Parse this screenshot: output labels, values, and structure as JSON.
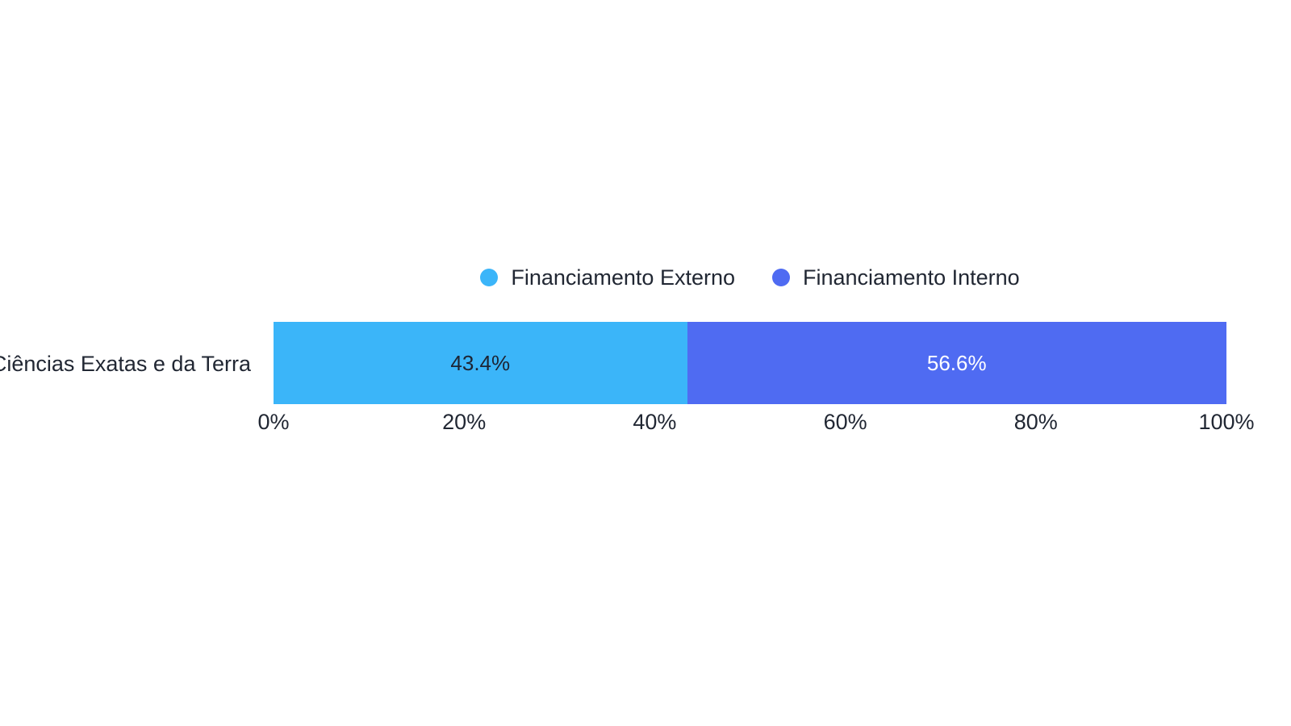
{
  "page": {
    "background": "#ffffff",
    "text_color": "#212733"
  },
  "chart_data": {
    "type": "bar",
    "orientation": "horizontal",
    "stacked": true,
    "title": "",
    "categories": [
      "Ciências Exatas e da Terra"
    ],
    "series": [
      {
        "name": "Financiamento Externo",
        "values": [
          43.4
        ],
        "data_labels": [
          "43.4%"
        ],
        "color": "#3BB5F9",
        "label_color": "#1D2433"
      },
      {
        "name": "Financiamento Interno",
        "values": [
          56.6
        ],
        "data_labels": [
          "56.6%"
        ],
        "color": "#4F6BF2",
        "label_color": "#FFFFFF"
      }
    ],
    "x_axis": {
      "min": 0,
      "max": 100,
      "ticks": [
        "0%",
        "20%",
        "40%",
        "60%",
        "80%",
        "100%"
      ]
    },
    "legend": {
      "position": "top-center",
      "items": [
        "Financiamento Externo",
        "Financiamento Interno"
      ]
    },
    "grid": false,
    "axis_line": false
  }
}
